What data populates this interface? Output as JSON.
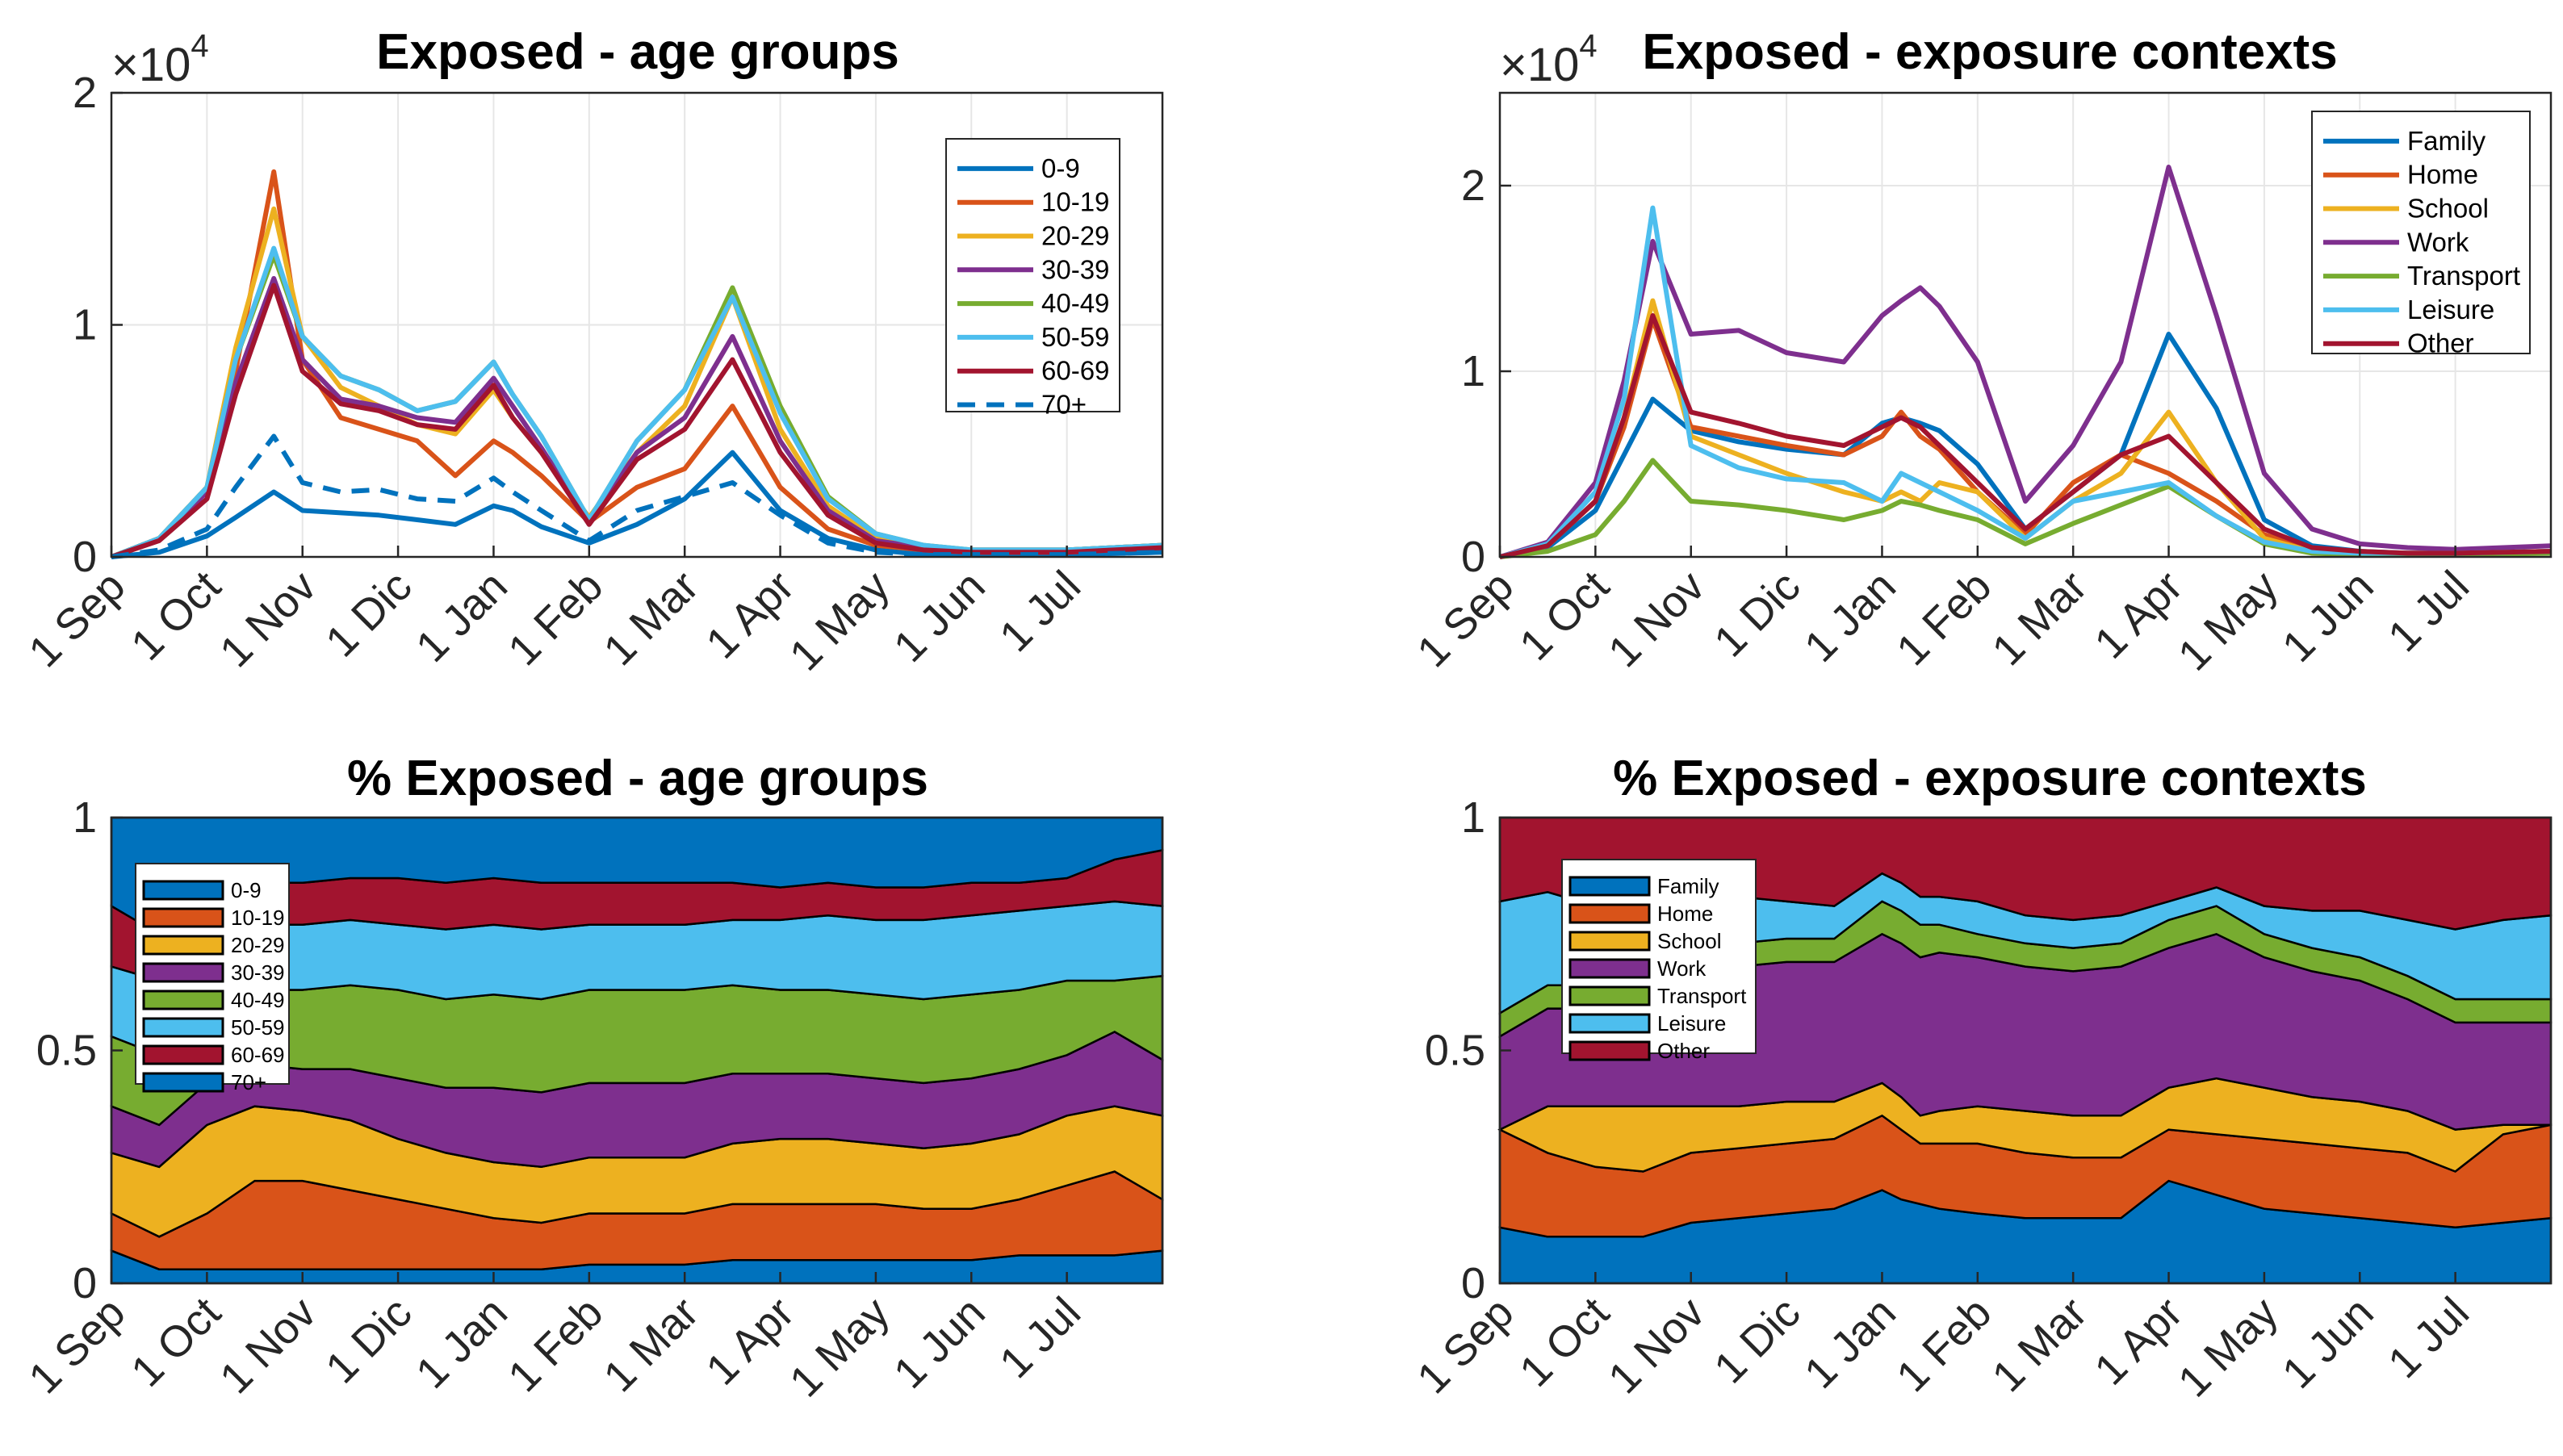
{
  "months": [
    "1 Sep",
    "1 Oct",
    "1 Nov",
    "1 Dic",
    "1 Jan",
    "1 Feb",
    "1 Mar",
    "1 Apr",
    "1 May",
    "1 Jun",
    "1 Jul"
  ],
  "colors": {
    "c1": "#0072BD",
    "c2": "#D95319",
    "c3": "#EDB120",
    "c4": "#7E2F8E",
    "c5": "#77AC30",
    "c6": "#4DBEEE",
    "c7": "#A2142F"
  },
  "chart_data": [
    {
      "id": "age_abs",
      "type": "line",
      "title": "Exposed - age groups",
      "exponent_label": "×10",
      "exponent_power": "4",
      "ylim": [
        0,
        2
      ],
      "yticks": [
        "0",
        "1",
        "2"
      ],
      "xlim": [
        0,
        11
      ],
      "x": [
        0,
        0.5,
        1,
        1.3,
        1.7,
        2,
        2.4,
        2.8,
        3.2,
        3.6,
        4,
        4.2,
        4.5,
        5,
        5.5,
        6,
        6.5,
        7,
        7.5,
        8,
        8.5,
        9,
        9.5,
        10,
        11
      ],
      "series": [
        {
          "name": "0-9",
          "values": [
            0,
            0.02,
            0.09,
            0.17,
            0.28,
            0.2,
            0.19,
            0.18,
            0.16,
            0.14,
            0.22,
            0.2,
            0.13,
            0.06,
            0.14,
            0.25,
            0.45,
            0.2,
            0.08,
            0.03,
            0.01,
            0.01,
            0.01,
            0.01,
            0.02
          ]
        },
        {
          "name": "10-19",
          "values": [
            0,
            0.08,
            0.3,
            0.8,
            1.66,
            0.85,
            0.6,
            0.55,
            0.5,
            0.35,
            0.5,
            0.45,
            0.35,
            0.15,
            0.3,
            0.38,
            0.65,
            0.3,
            0.12,
            0.05,
            0.03,
            0.02,
            0.02,
            0.02,
            0.04
          ]
        },
        {
          "name": "20-29",
          "values": [
            0,
            0.08,
            0.3,
            0.9,
            1.5,
            0.95,
            0.73,
            0.65,
            0.57,
            0.53,
            0.72,
            0.6,
            0.45,
            0.17,
            0.45,
            0.65,
            1.12,
            0.55,
            0.22,
            0.08,
            0.04,
            0.03,
            0.03,
            0.03,
            0.05
          ]
        },
        {
          "name": "30-39",
          "values": [
            0,
            0.08,
            0.28,
            0.75,
            1.2,
            0.85,
            0.68,
            0.65,
            0.6,
            0.58,
            0.77,
            0.65,
            0.47,
            0.15,
            0.45,
            0.6,
            0.95,
            0.5,
            0.2,
            0.07,
            0.04,
            0.03,
            0.03,
            0.03,
            0.05
          ]
        },
        {
          "name": "40-49",
          "values": [
            0,
            0.08,
            0.3,
            0.85,
            1.3,
            0.95,
            0.78,
            0.72,
            0.63,
            0.67,
            0.84,
            0.7,
            0.52,
            0.16,
            0.5,
            0.72,
            1.16,
            0.65,
            0.26,
            0.1,
            0.05,
            0.03,
            0.03,
            0.03,
            0.05
          ]
        },
        {
          "name": "50-59",
          "values": [
            0,
            0.08,
            0.3,
            0.85,
            1.33,
            0.95,
            0.78,
            0.72,
            0.63,
            0.67,
            0.84,
            0.7,
            0.52,
            0.16,
            0.5,
            0.72,
            1.12,
            0.62,
            0.25,
            0.1,
            0.05,
            0.03,
            0.03,
            0.03,
            0.05
          ]
        },
        {
          "name": "60-69",
          "values": [
            0,
            0.07,
            0.25,
            0.7,
            1.17,
            0.8,
            0.66,
            0.63,
            0.57,
            0.55,
            0.74,
            0.6,
            0.45,
            0.14,
            0.42,
            0.55,
            0.85,
            0.45,
            0.18,
            0.06,
            0.03,
            0.02,
            0.02,
            0.02,
            0.04
          ]
        },
        {
          "name": "70+",
          "dashed": true,
          "values": [
            0,
            0.03,
            0.12,
            0.3,
            0.52,
            0.32,
            0.28,
            0.29,
            0.25,
            0.24,
            0.34,
            0.28,
            0.2,
            0.07,
            0.2,
            0.26,
            0.32,
            0.18,
            0.06,
            0.02,
            0.01,
            0.01,
            0.01,
            0.01,
            0.02
          ]
        }
      ]
    },
    {
      "id": "ctx_abs",
      "type": "line",
      "title": "Exposed - exposure contexts",
      "exponent_label": "×10",
      "exponent_power": "4",
      "ylim": [
        0,
        2.5
      ],
      "yticks": [
        "0",
        "1",
        "2"
      ],
      "ytick_values": [
        0,
        1,
        2
      ],
      "xlim": [
        0,
        11
      ],
      "x": [
        0,
        0.5,
        1,
        1.3,
        1.6,
        2,
        2.5,
        3,
        3.6,
        4,
        4.2,
        4.4,
        4.6,
        5,
        5.5,
        6,
        6.5,
        7,
        7.5,
        8,
        8.5,
        9,
        9.5,
        10,
        11
      ],
      "series": [
        {
          "name": "Family",
          "values": [
            0,
            0.05,
            0.25,
            0.55,
            0.85,
            0.68,
            0.62,
            0.58,
            0.55,
            0.72,
            0.75,
            0.72,
            0.68,
            0.5,
            0.15,
            0.35,
            0.55,
            1.2,
            0.8,
            0.2,
            0.06,
            0.03,
            0.02,
            0.02,
            0.03
          ]
        },
        {
          "name": "Home",
          "values": [
            0,
            0.06,
            0.3,
            0.7,
            1.28,
            0.7,
            0.65,
            0.6,
            0.55,
            0.65,
            0.78,
            0.65,
            0.58,
            0.35,
            0.12,
            0.4,
            0.55,
            0.45,
            0.3,
            0.12,
            0.04,
            0.02,
            0.02,
            0.02,
            0.03
          ]
        },
        {
          "name": "School",
          "values": [
            0,
            0.06,
            0.3,
            0.75,
            1.38,
            0.65,
            0.55,
            0.45,
            0.35,
            0.3,
            0.35,
            0.3,
            0.4,
            0.35,
            0.1,
            0.3,
            0.45,
            0.78,
            0.4,
            0.1,
            0.03,
            0.02,
            0.02,
            0.02,
            0.03
          ]
        },
        {
          "name": "Work",
          "values": [
            0,
            0.08,
            0.4,
            0.95,
            1.7,
            1.2,
            1.22,
            1.1,
            1.05,
            1.3,
            1.38,
            1.45,
            1.35,
            1.05,
            0.3,
            0.6,
            1.05,
            2.1,
            1.3,
            0.45,
            0.15,
            0.07,
            0.05,
            0.04,
            0.06
          ]
        },
        {
          "name": "Transport",
          "values": [
            0,
            0.03,
            0.12,
            0.3,
            0.52,
            0.3,
            0.28,
            0.25,
            0.2,
            0.25,
            0.3,
            0.28,
            0.25,
            0.2,
            0.07,
            0.18,
            0.28,
            0.38,
            0.22,
            0.07,
            0.02,
            0.01,
            0.01,
            0.01,
            0.02
          ]
        },
        {
          "name": "Leisure",
          "values": [
            0,
            0.07,
            0.35,
            0.85,
            1.88,
            0.6,
            0.48,
            0.42,
            0.4,
            0.3,
            0.45,
            0.4,
            0.35,
            0.25,
            0.1,
            0.3,
            0.35,
            0.4,
            0.22,
            0.08,
            0.03,
            0.02,
            0.02,
            0.02,
            0.03
          ]
        },
        {
          "name": "Other",
          "values": [
            0,
            0.06,
            0.3,
            0.75,
            1.3,
            0.78,
            0.72,
            0.65,
            0.6,
            0.7,
            0.75,
            0.7,
            0.6,
            0.4,
            0.15,
            0.35,
            0.55,
            0.65,
            0.4,
            0.15,
            0.05,
            0.03,
            0.02,
            0.02,
            0.03
          ]
        }
      ]
    },
    {
      "id": "age_pct",
      "type": "area",
      "title": "% Exposed - age groups",
      "ylim": [
        0,
        1
      ],
      "yticks": [
        "0",
        "0.5",
        "1"
      ],
      "xlim": [
        0,
        11
      ],
      "x": [
        0,
        0.5,
        1,
        1.5,
        2,
        2.5,
        3,
        3.5,
        4,
        4.5,
        5,
        5.5,
        6,
        6.5,
        7,
        7.5,
        8,
        8.5,
        9,
        9.5,
        10,
        10.5,
        11
      ],
      "series": [
        {
          "name": "0-9",
          "values": [
            0.07,
            0.03,
            0.03,
            0.03,
            0.03,
            0.03,
            0.03,
            0.03,
            0.03,
            0.03,
            0.04,
            0.04,
            0.04,
            0.05,
            0.05,
            0.05,
            0.05,
            0.05,
            0.05,
            0.06,
            0.06,
            0.06,
            0.07
          ]
        },
        {
          "name": "10-19",
          "values": [
            0.08,
            0.07,
            0.12,
            0.19,
            0.19,
            0.17,
            0.15,
            0.13,
            0.11,
            0.1,
            0.11,
            0.11,
            0.11,
            0.12,
            0.12,
            0.12,
            0.12,
            0.11,
            0.11,
            0.12,
            0.15,
            0.18,
            0.11
          ]
        },
        {
          "name": "20-29",
          "values": [
            0.13,
            0.15,
            0.19,
            0.16,
            0.15,
            0.15,
            0.13,
            0.12,
            0.12,
            0.12,
            0.12,
            0.12,
            0.12,
            0.13,
            0.14,
            0.14,
            0.13,
            0.13,
            0.14,
            0.14,
            0.15,
            0.14,
            0.18
          ]
        },
        {
          "name": "30-39",
          "values": [
            0.1,
            0.09,
            0.09,
            0.09,
            0.09,
            0.11,
            0.13,
            0.14,
            0.16,
            0.16,
            0.16,
            0.16,
            0.16,
            0.15,
            0.14,
            0.14,
            0.14,
            0.14,
            0.14,
            0.14,
            0.13,
            0.16,
            0.12
          ]
        },
        {
          "name": "40-49",
          "values": [
            0.15,
            0.15,
            0.15,
            0.16,
            0.17,
            0.18,
            0.19,
            0.19,
            0.2,
            0.2,
            0.2,
            0.2,
            0.2,
            0.19,
            0.18,
            0.18,
            0.18,
            0.18,
            0.18,
            0.17,
            0.16,
            0.11,
            0.18
          ]
        },
        {
          "name": "50-59",
          "values": [
            0.15,
            0.16,
            0.15,
            0.14,
            0.14,
            0.14,
            0.14,
            0.15,
            0.15,
            0.15,
            0.14,
            0.14,
            0.14,
            0.14,
            0.15,
            0.16,
            0.16,
            0.17,
            0.17,
            0.17,
            0.16,
            0.17,
            0.15
          ]
        },
        {
          "name": "60-69",
          "values": [
            0.13,
            0.1,
            0.09,
            0.09,
            0.09,
            0.09,
            0.1,
            0.1,
            0.1,
            0.1,
            0.09,
            0.09,
            0.09,
            0.08,
            0.07,
            0.07,
            0.07,
            0.07,
            0.07,
            0.06,
            0.06,
            0.09,
            0.12
          ]
        },
        {
          "name": "70+",
          "values": [
            0.19,
            0.25,
            0.18,
            0.14,
            0.14,
            0.13,
            0.13,
            0.14,
            0.13,
            0.14,
            0.14,
            0.14,
            0.14,
            0.14,
            0.15,
            0.14,
            0.15,
            0.15,
            0.14,
            0.14,
            0.13,
            0.09,
            0.07
          ]
        }
      ]
    },
    {
      "id": "ctx_pct",
      "type": "area",
      "title": "% Exposed - exposure contexts",
      "ylim": [
        0,
        1
      ],
      "yticks": [
        "0",
        "0.5",
        "1"
      ],
      "xlim": [
        0,
        11
      ],
      "x": [
        0,
        0.5,
        1,
        1.5,
        2,
        2.5,
        3,
        3.5,
        4,
        4.2,
        4.4,
        4.6,
        5,
        5.5,
        6,
        6.5,
        7,
        7.5,
        8,
        8.5,
        9,
        9.5,
        10,
        10.5,
        11
      ],
      "series": [
        {
          "name": "Family",
          "values": [
            0.12,
            0.1,
            0.1,
            0.1,
            0.13,
            0.14,
            0.15,
            0.16,
            0.2,
            0.18,
            0.17,
            0.16,
            0.15,
            0.14,
            0.14,
            0.14,
            0.22,
            0.19,
            0.16,
            0.15,
            0.14,
            0.13,
            0.12,
            0.13,
            0.14
          ]
        },
        {
          "name": "Home",
          "values": [
            0.21,
            0.18,
            0.15,
            0.14,
            0.15,
            0.15,
            0.15,
            0.15,
            0.16,
            0.15,
            0.13,
            0.14,
            0.15,
            0.14,
            0.13,
            0.13,
            0.11,
            0.13,
            0.15,
            0.15,
            0.15,
            0.15,
            0.12,
            0.19,
            0.2
          ]
        },
        {
          "name": "School",
          "values": [
            0.0,
            0.1,
            0.13,
            0.14,
            0.1,
            0.09,
            0.09,
            0.08,
            0.07,
            0.07,
            0.06,
            0.07,
            0.08,
            0.09,
            0.09,
            0.09,
            0.09,
            0.12,
            0.11,
            0.1,
            0.1,
            0.09,
            0.09,
            0.02,
            0.0
          ]
        },
        {
          "name": "Work",
          "values": [
            0.2,
            0.21,
            0.21,
            0.22,
            0.28,
            0.3,
            0.3,
            0.3,
            0.32,
            0.33,
            0.34,
            0.34,
            0.32,
            0.31,
            0.31,
            0.32,
            0.3,
            0.31,
            0.28,
            0.27,
            0.26,
            0.24,
            0.23,
            0.22,
            0.22
          ]
        },
        {
          "name": "Transport",
          "values": [
            0.05,
            0.05,
            0.05,
            0.05,
            0.05,
            0.05,
            0.05,
            0.05,
            0.07,
            0.07,
            0.07,
            0.06,
            0.05,
            0.05,
            0.05,
            0.05,
            0.06,
            0.06,
            0.05,
            0.05,
            0.05,
            0.05,
            0.05,
            0.05,
            0.05
          ]
        },
        {
          "name": "Leisure",
          "values": [
            0.24,
            0.2,
            0.17,
            0.16,
            0.12,
            0.1,
            0.08,
            0.07,
            0.06,
            0.06,
            0.06,
            0.06,
            0.07,
            0.06,
            0.06,
            0.06,
            0.04,
            0.04,
            0.06,
            0.08,
            0.1,
            0.12,
            0.15,
            0.17,
            0.18
          ]
        },
        {
          "name": "Other",
          "values": [
            0.18,
            0.16,
            0.19,
            0.19,
            0.17,
            0.17,
            0.18,
            0.19,
            0.12,
            0.14,
            0.17,
            0.17,
            0.18,
            0.21,
            0.22,
            0.21,
            0.18,
            0.15,
            0.19,
            0.2,
            0.2,
            0.22,
            0.24,
            0.22,
            0.21
          ]
        }
      ]
    }
  ]
}
